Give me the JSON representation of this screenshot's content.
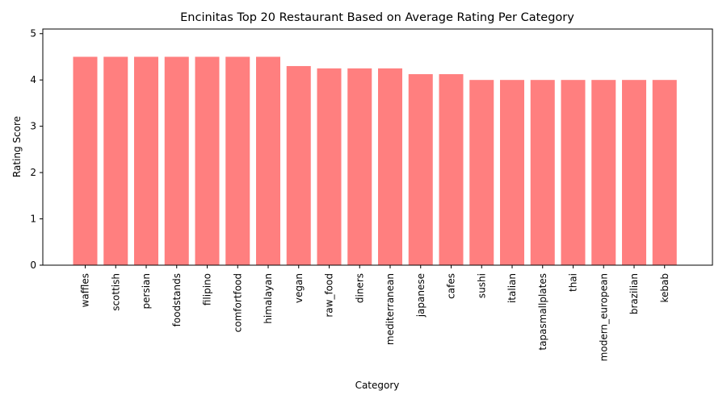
{
  "chart_data": {
    "type": "bar",
    "title": "Encinitas Top 20 Restaurant Based on Average Rating Per Category",
    "xlabel": "Category",
    "ylabel": "Rating Score",
    "categories": [
      "waffles",
      "scottish",
      "persian",
      "foodstands",
      "filipino",
      "comfortfood",
      "himalayan",
      "vegan",
      "raw_food",
      "diners",
      "mediterranean",
      "japanese",
      "cafes",
      "sushi",
      "italian",
      "tapasmallplates",
      "thai",
      "modern_european",
      "brazilian",
      "kebab"
    ],
    "values": [
      4.5,
      4.5,
      4.5,
      4.5,
      4.5,
      4.5,
      4.5,
      4.3,
      4.25,
      4.25,
      4.25,
      4.125,
      4.125,
      4.0,
      4.0,
      4.0,
      4.0,
      4.0,
      4.0,
      4.0
    ],
    "ylim": [
      0,
      5.1
    ],
    "yticks": [
      0,
      1,
      2,
      3,
      4,
      5
    ],
    "bar_color": "#ff7f7f",
    "grid": false,
    "legend": "none"
  }
}
